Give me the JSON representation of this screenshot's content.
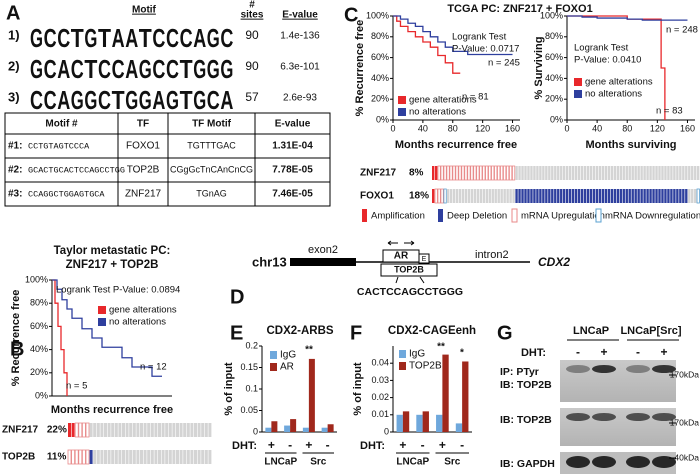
{
  "panel_labels": [
    "A",
    "B",
    "C",
    "D",
    "E",
    "F",
    "G"
  ],
  "motifs": {
    "headers": [
      "Motif",
      "#",
      "sites",
      "E-value"
    ],
    "rows": [
      {
        "label": "1)",
        "sequence": [
          "G",
          "C",
          "C",
          "T",
          "G",
          "T",
          "A",
          "A",
          "T",
          "C",
          "C",
          "C",
          "A",
          "G",
          "C"
        ],
        "sites": "90",
        "evalue": "1.4e-136"
      },
      {
        "label": "2)",
        "sequence": [
          "G",
          "C",
          "A",
          "C",
          "T",
          "C",
          "C",
          "A",
          "G",
          "C",
          "C",
          "T",
          "G",
          "G",
          "G"
        ],
        "sites": "90",
        "evalue": "6.3e-101"
      },
      {
        "label": "3)",
        "sequence": [
          "C",
          "C",
          "A",
          "G",
          "G",
          "C",
          "T",
          "G",
          "G",
          "A",
          "G",
          "T",
          "G",
          "C",
          "A"
        ],
        "sites": "57",
        "evalue": "2.6e-93"
      }
    ]
  },
  "motif_table": {
    "headers": [
      "Motif #",
      "TF",
      "TF Motif",
      "E-value"
    ],
    "rows": [
      [
        "#1:",
        "CCTGTAGTCCCA",
        "FOXO1",
        "TGTTTGAC",
        "1.31E-04"
      ],
      [
        "#2:",
        "GCACTGCACTCCAGCCTGG",
        "TOP2B",
        "CGgGcTnCAnCnCG",
        "7.78E-05"
      ],
      [
        "#3:",
        "CCAGGCTGGAGTGCA",
        "ZNF217",
        "TGnAG",
        "7.46E-05"
      ]
    ]
  },
  "panel_c_title": "TCGA PC:  ZNF217 + FOXO1",
  "chart_data": [
    {
      "type": "step",
      "title": "Taylor metastatic PC:",
      "subtitle": "ZNF217 + TOP2B",
      "x_label": "Months recurrence free",
      "y_label": "% Recurrence free",
      "xlim": [
        0,
        120
      ],
      "ylim": [
        0,
        100
      ],
      "yticks": [
        {
          "value": 0,
          "label": "0%"
        },
        {
          "value": 20,
          "label": "20%"
        },
        {
          "value": 40,
          "label": "40%"
        },
        {
          "value": 60,
          "label": "60%"
        },
        {
          "value": 80,
          "label": "80%"
        },
        {
          "value": 100,
          "label": "100%"
        }
      ],
      "series": [
        {
          "name": "gene alterations",
          "color": "#e8282b",
          "x": [
            0,
            3,
            6,
            9,
            12,
            15
          ],
          "values": [
            100,
            80,
            60,
            40,
            20,
            0
          ]
        },
        {
          "name": "no alterations",
          "color": "#2e3f9e",
          "x": [
            0,
            5,
            10,
            15,
            20,
            30,
            40,
            50,
            60,
            70,
            80,
            100,
            110
          ],
          "values": [
            100,
            92,
            83,
            75,
            67,
            58,
            50,
            42,
            42,
            33,
            25,
            17,
            17
          ]
        }
      ],
      "annotations": [
        "Logrank Test P-Value: 0.0894",
        "n = 5",
        "n = 12"
      ]
    },
    {
      "type": "step",
      "x_label": "Months recurrence free",
      "y_label": "% Recurrence free",
      "xlim": [
        0,
        170
      ],
      "ylim": [
        0,
        100
      ],
      "xticks": [
        0,
        40,
        80,
        120,
        160
      ],
      "yticks": [
        {
          "value": 0,
          "label": "0%"
        },
        {
          "value": 20,
          "label": "20%"
        },
        {
          "value": 40,
          "label": "40%"
        },
        {
          "value": 60,
          "label": "60%"
        },
        {
          "value": 80,
          "label": "80%"
        },
        {
          "value": 100,
          "label": "100%"
        }
      ],
      "series": [
        {
          "name": "gene alterations",
          "color": "#e8282b",
          "x": [
            0,
            5,
            10,
            20,
            30,
            40,
            50,
            60,
            70,
            80,
            90
          ],
          "values": [
            100,
            95,
            90,
            85,
            80,
            75,
            70,
            62,
            55,
            45,
            45
          ]
        },
        {
          "name": "no alterations",
          "color": "#2e3f9e",
          "x": [
            0,
            10,
            20,
            30,
            40,
            50,
            60,
            70,
            80,
            100,
            120,
            160
          ],
          "values": [
            100,
            97,
            93,
            90,
            85,
            80,
            75,
            70,
            66,
            63,
            63,
            63
          ]
        }
      ],
      "annotations": [
        "Logrank Test",
        "P-Value: 0.0717",
        "n = 245",
        "n = 81"
      ]
    },
    {
      "type": "step",
      "x_label": "Months surviving",
      "y_label": "% Surviving",
      "xlim": [
        0,
        170
      ],
      "ylim": [
        0,
        100
      ],
      "xticks": [
        0,
        40,
        80,
        120,
        160
      ],
      "yticks": [
        {
          "value": 0,
          "label": "0%"
        },
        {
          "value": 20,
          "label": "20%"
        },
        {
          "value": 40,
          "label": "40%"
        },
        {
          "value": 60,
          "label": "60%"
        },
        {
          "value": 80,
          "label": "80%"
        },
        {
          "value": 100,
          "label": "100%"
        }
      ],
      "series": [
        {
          "name": "gene alterations",
          "color": "#e8282b",
          "x": [
            0,
            40,
            80,
            100,
            120,
            125,
            130
          ],
          "values": [
            100,
            100,
            97,
            97,
            97,
            50,
            0
          ]
        },
        {
          "name": "no alterations",
          "color": "#2e3f9e",
          "x": [
            0,
            20,
            40,
            60,
            80,
            100,
            120,
            140,
            160
          ],
          "values": [
            100,
            99,
            98,
            98,
            97,
            96,
            96,
            96,
            96
          ]
        }
      ],
      "annotations": [
        "Logrank Test",
        "P-Value: 0.0410",
        "n = 248",
        "n = 83"
      ]
    },
    {
      "type": "bar",
      "title": "CDX2-ARBS",
      "y_label": "% of input",
      "ylim": [
        0,
        0.2
      ],
      "yticks": [
        0,
        0.05,
        0.1,
        0.15,
        0.2
      ],
      "category_axis_label": "DHT:",
      "categories": [
        "+",
        "-",
        "+",
        "-"
      ],
      "groups": [
        "LNCaP",
        "Src"
      ],
      "series": [
        {
          "name": "IgG",
          "color": "#6fa8dc",
          "values": [
            0.01,
            0.015,
            0.01,
            0.01
          ]
        },
        {
          "name": "AR",
          "color": "#a0281c",
          "values": [
            0.025,
            0.03,
            0.17,
            0.018
          ]
        }
      ],
      "annotations": [
        "**"
      ]
    },
    {
      "type": "bar",
      "title": "CDX2-CAGEenh",
      "y_label": "% of input",
      "ylim": [
        0,
        0.05
      ],
      "yticks": [
        0,
        0.01,
        0.02,
        0.03,
        0.04
      ],
      "category_axis_label": "DHT:",
      "categories": [
        "+",
        "-",
        "+",
        "-"
      ],
      "groups": [
        "LNCaP",
        "Src"
      ],
      "series": [
        {
          "name": "IgG",
          "color": "#6fa8dc",
          "values": [
            0.01,
            0.01,
            0.01,
            0.005
          ]
        },
        {
          "name": "TOP2B",
          "color": "#a0281c",
          "values": [
            0.012,
            0.012,
            0.045,
            0.041
          ]
        }
      ],
      "annotations": [
        "**",
        "*"
      ]
    }
  ],
  "oncoprint_b": {
    "rows": [
      {
        "gene": "ZNF217",
        "pct": "22%"
      },
      {
        "gene": "TOP2B",
        "pct": "11%"
      }
    ]
  },
  "oncoprint_c": {
    "rows": [
      {
        "gene": "ZNF217",
        "pct": "8%"
      },
      {
        "gene": "FOXO1",
        "pct": "18%"
      }
    ]
  },
  "oncoprint_legend": [
    "Amplification",
    "Deep Deletion",
    "mRNA Upregulation",
    "mRNA Downregulation"
  ],
  "diagram": {
    "chromosome": "chr13",
    "exon": "exon2",
    "ar": "AR",
    "e": "E",
    "top2b": "TOP2B",
    "intron": "intron2",
    "gene": "CDX2",
    "sequence": "CACTCCAGCCTGGG"
  },
  "blot": {
    "groups": [
      "LNCaP",
      "LNCaP[Src]"
    ],
    "dht_label": "DHT:",
    "dht": [
      "-",
      "+",
      "-",
      "+"
    ],
    "panels": [
      {
        "labels": [
          "IP: PTyr",
          "IB: TOP2B"
        ],
        "marker": "170kDa"
      },
      {
        "labels": [
          "IB: TOP2B"
        ],
        "marker": "170kDa"
      },
      {
        "labels": [
          "IB: GAPDH"
        ],
        "marker": "40kDa"
      }
    ]
  }
}
